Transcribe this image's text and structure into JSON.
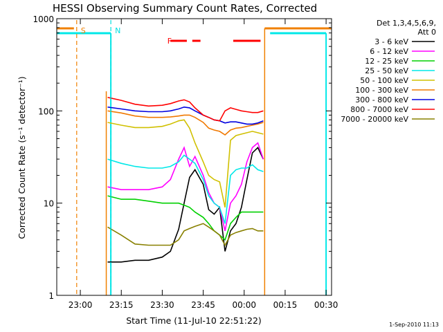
{
  "chart_data": {
    "type": "line",
    "title": "HESSI Observing Summary Count Rates, Corrected",
    "xlabel": "Start Time (11-Jul-10 22:51:22)",
    "ylabel": "Corrected Count Rate (s⁻¹ detector⁻¹)",
    "yscale": "log",
    "ylim": [
      1,
      1000
    ],
    "xlim": [
      "22:51:22",
      "00:32:00"
    ],
    "x_tick_labels": [
      "23:00",
      "23:15",
      "23:30",
      "23:45",
      "00:00",
      "00:15",
      "00:30"
    ],
    "y_tick_labels": [
      "1",
      "10",
      "100",
      "1000"
    ],
    "legend_header": [
      "Det 1,3,4,5,6,9,",
      "Att 0"
    ],
    "legend_position": "right",
    "stamp": "1-Sep-2010 11:13",
    "markers": [
      {
        "label": "S",
        "color": "#f08000",
        "time": "22:58:40",
        "style": "dashed"
      },
      {
        "label": "N",
        "color": "#00e0e0",
        "time": "23:11:10",
        "style": "dashed"
      },
      {
        "label": "F",
        "color": "#ff0000",
        "time": "23:35:00",
        "style": "dashed-segments"
      }
    ],
    "data_gaps_cyan": [
      [
        "22:51:22",
        "23:11:10"
      ],
      [
        "00:09:30",
        "00:30:00"
      ]
    ],
    "series": [
      {
        "name": "3 - 6 keV",
        "color": "#000000",
        "x": [
          "23:10",
          "23:15",
          "23:20",
          "23:25",
          "23:30",
          "23:33",
          "23:36",
          "23:38",
          "23:40",
          "23:42",
          "23:45",
          "23:47",
          "23:49",
          "23:51",
          "23:53",
          "23:55",
          "23:57",
          "23:59",
          "00:01",
          "00:03",
          "00:05",
          "00:07"
        ],
        "y": [
          2.3,
          2.3,
          2.4,
          2.4,
          2.6,
          3.0,
          5.2,
          10,
          19,
          23,
          16,
          8.5,
          7.6,
          9,
          3,
          5,
          6,
          9,
          18,
          35,
          40,
          30
        ]
      },
      {
        "name": "6 - 12 keV",
        "color": "#ff00ff",
        "x": [
          "23:10",
          "23:15",
          "23:20",
          "23:25",
          "23:30",
          "23:33",
          "23:36",
          "23:38",
          "23:40",
          "23:42",
          "23:45",
          "23:47",
          "23:49",
          "23:51",
          "23:53",
          "23:55",
          "23:57",
          "23:59",
          "00:01",
          "00:03",
          "00:05",
          "00:07"
        ],
        "y": [
          15,
          14,
          14,
          14,
          15,
          18,
          30,
          40,
          25,
          32,
          20,
          13,
          10,
          9,
          5,
          10,
          12,
          16,
          28,
          40,
          45,
          30
        ]
      },
      {
        "name": "12 - 25 keV",
        "color": "#00d000",
        "x": [
          "23:10",
          "23:15",
          "23:20",
          "23:25",
          "23:30",
          "23:33",
          "23:36",
          "23:38",
          "23:40",
          "23:42",
          "23:45",
          "23:47",
          "23:49",
          "23:51",
          "23:53",
          "23:55",
          "23:57",
          "23:59",
          "00:01",
          "00:03",
          "00:05",
          "00:07"
        ],
        "y": [
          12,
          11,
          11,
          10.5,
          10,
          10,
          10,
          9.5,
          9,
          8,
          7,
          6,
          5,
          4.5,
          4,
          6,
          7,
          8,
          8,
          8,
          8,
          8
        ]
      },
      {
        "name": "25 - 50 keV",
        "color": "#00e8e8",
        "x": [
          "23:10",
          "23:15",
          "23:20",
          "23:25",
          "23:30",
          "23:33",
          "23:36",
          "23:38",
          "23:40",
          "23:42",
          "23:45",
          "23:47",
          "23:49",
          "23:51",
          "23:53",
          "23:55",
          "23:57",
          "23:59",
          "00:01",
          "00:03",
          "00:05",
          "00:07"
        ],
        "y": [
          30,
          27,
          25,
          24,
          24,
          25,
          28,
          33,
          30,
          27,
          18,
          12,
          10,
          9,
          6,
          20,
          23,
          24,
          24,
          26,
          23,
          22
        ]
      },
      {
        "name": "50 - 100 keV",
        "color": "#d0c000",
        "x": [
          "23:10",
          "23:15",
          "23:20",
          "23:25",
          "23:30",
          "23:33",
          "23:36",
          "23:38",
          "23:40",
          "23:42",
          "23:45",
          "23:47",
          "23:49",
          "23:51",
          "23:53",
          "23:55",
          "23:57",
          "23:59",
          "00:01",
          "00:03",
          "00:05",
          "00:07"
        ],
        "y": [
          75,
          70,
          66,
          66,
          68,
          72,
          78,
          80,
          65,
          45,
          28,
          20,
          18,
          17,
          9,
          48,
          54,
          56,
          58,
          60,
          58,
          56
        ]
      },
      {
        "name": "100 - 300 keV",
        "color": "#f07800",
        "x": [
          "23:10",
          "23:15",
          "23:20",
          "23:25",
          "23:30",
          "23:33",
          "23:36",
          "23:38",
          "23:40",
          "23:42",
          "23:45",
          "23:47",
          "23:49",
          "23:51",
          "23:53",
          "23:55",
          "23:57",
          "23:59",
          "00:01",
          "00:03",
          "00:05",
          "00:07"
        ],
        "y": [
          100,
          95,
          88,
          85,
          85,
          86,
          88,
          90,
          90,
          85,
          75,
          65,
          62,
          60,
          55,
          62,
          65,
          66,
          68,
          70,
          72,
          75
        ]
      },
      {
        "name": "300 - 800 keV",
        "color": "#0000e0",
        "x": [
          "23:10",
          "23:15",
          "23:20",
          "23:25",
          "23:30",
          "23:33",
          "23:36",
          "23:38",
          "23:40",
          "23:42",
          "23:45",
          "23:47",
          "23:49",
          "23:51",
          "23:53",
          "23:55",
          "23:57",
          "23:59",
          "00:01",
          "00:03",
          "00:05",
          "00:07"
        ],
        "y": [
          110,
          105,
          100,
          98,
          98,
          100,
          105,
          110,
          108,
          100,
          90,
          85,
          80,
          78,
          74,
          76,
          76,
          74,
          72,
          72,
          74,
          78
        ]
      },
      {
        "name": "800 - 7000 keV",
        "color": "#ff0000",
        "x": [
          "23:10",
          "23:15",
          "23:20",
          "23:25",
          "23:30",
          "23:33",
          "23:36",
          "23:38",
          "23:40",
          "23:42",
          "23:45",
          "23:47",
          "23:49",
          "23:51",
          "23:53",
          "23:55",
          "23:57",
          "23:59",
          "00:01",
          "00:03",
          "00:05",
          "00:07"
        ],
        "y": [
          140,
          130,
          118,
          113,
          115,
          120,
          128,
          132,
          125,
          108,
          90,
          85,
          80,
          78,
          100,
          108,
          104,
          100,
          98,
          96,
          96,
          100
        ]
      },
      {
        "name": "7000 - 20000 keV",
        "color": "#888000",
        "x": [
          "23:10",
          "23:15",
          "23:20",
          "23:25",
          "23:30",
          "23:33",
          "23:36",
          "23:38",
          "23:40",
          "23:42",
          "23:45",
          "23:47",
          "23:49",
          "23:51",
          "23:53",
          "23:55",
          "23:57",
          "23:59",
          "00:01",
          "00:03",
          "00:05",
          "00:07"
        ],
        "y": [
          5.5,
          4.5,
          3.6,
          3.5,
          3.5,
          3.5,
          4,
          5,
          5.3,
          5.6,
          6,
          5.5,
          5,
          4.5,
          3.5,
          4.5,
          4.8,
          5,
          5.2,
          5.3,
          5,
          5
        ]
      }
    ]
  }
}
